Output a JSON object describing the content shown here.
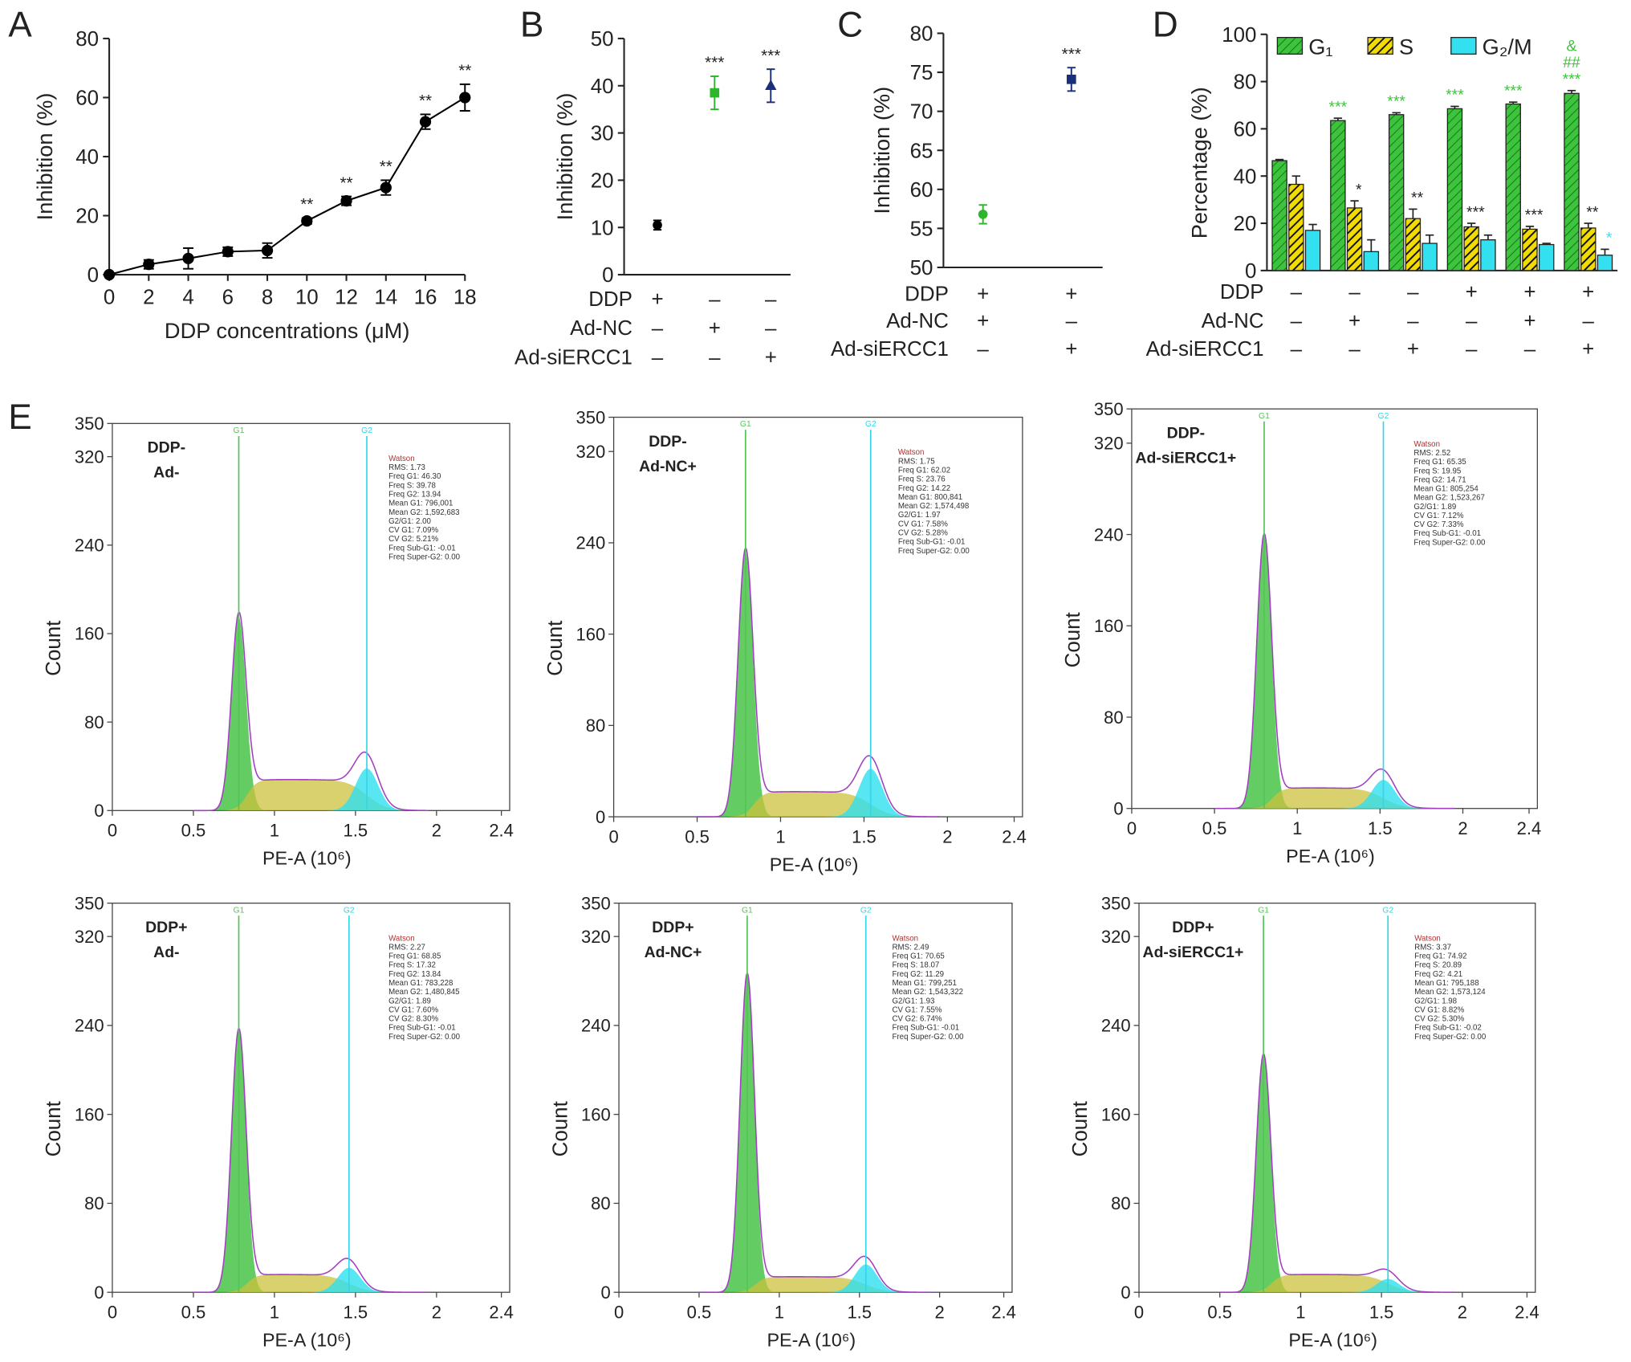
{
  "chart_data": [
    {
      "type": "line",
      "label": "A",
      "x": [
        0,
        2,
        4,
        6,
        8,
        10,
        12,
        14,
        16,
        18
      ],
      "values": [
        0,
        3.5,
        5.5,
        7.8,
        8.2,
        18.2,
        25,
        29.5,
        51.8,
        60
      ],
      "errors": [
        0,
        1.5,
        3.5,
        1.5,
        2.5,
        1,
        1.5,
        2.5,
        2.5,
        4.5
      ],
      "significance": [
        null,
        null,
        null,
        null,
        null,
        "**",
        "**",
        "**",
        "**",
        "**"
      ],
      "color": "#000000",
      "xlim": [
        0,
        18
      ],
      "xticks": [
        0,
        2,
        4,
        6,
        8,
        10,
        12,
        14,
        16,
        18
      ],
      "ylim": [
        0,
        80
      ],
      "yticks": [
        0,
        20,
        40,
        60,
        80
      ],
      "xlabel": "DDP concentrations (μM)",
      "ylabel": "Inhibition (%)"
    },
    {
      "type": "dot",
      "label": "B",
      "ylabel": "Inhibition (%)",
      "ylim": [
        0,
        50
      ],
      "yticks": [
        0,
        10,
        20,
        30,
        40,
        50
      ],
      "values": [
        10.5,
        38.5,
        40
      ],
      "errors": [
        1,
        3.5,
        3.5
      ],
      "colors": [
        "#000000",
        "#2db52d",
        "#1a2f7a"
      ],
      "markers": [
        "circle",
        "square",
        "triangle"
      ],
      "significance": [
        null,
        "***",
        "***"
      ],
      "significance_color": "#222222",
      "conditions": [
        {
          "name": "DDP",
          "signs": [
            "+",
            "–",
            "–"
          ]
        },
        {
          "name": "Ad-NC",
          "signs": [
            "–",
            "+",
            "–"
          ]
        },
        {
          "name": "Ad-siERCC1",
          "signs": [
            "–",
            "–",
            "+"
          ]
        }
      ]
    },
    {
      "type": "dot",
      "label": "C",
      "ylabel": "Inhibition (%)",
      "ylim": [
        50,
        80
      ],
      "yticks": [
        50,
        55,
        60,
        65,
        70,
        75,
        80
      ],
      "values": [
        56.8,
        74.1
      ],
      "errors": [
        1.2,
        1.5
      ],
      "colors": [
        "#2db52d",
        "#1a2f7a"
      ],
      "markers": [
        "circle",
        "square"
      ],
      "significance": [
        null,
        "***"
      ],
      "significance_color": "#222222",
      "conditions": [
        {
          "name": "DDP",
          "signs": [
            "+",
            "+"
          ]
        },
        {
          "name": "Ad-NC",
          "signs": [
            "+",
            "–"
          ]
        },
        {
          "name": "Ad-siERCC1",
          "signs": [
            "–",
            "+"
          ]
        }
      ]
    },
    {
      "type": "bar",
      "label": "D",
      "ylabel": "Percentage (%)",
      "ylim": [
        0,
        100
      ],
      "yticks": [
        0,
        20,
        40,
        60,
        80,
        100
      ],
      "series": [
        {
          "name": "G₁",
          "color": "#3cc43c",
          "significance_color": "#3cc43c",
          "values": [
            46.5,
            63.5,
            66,
            68.5,
            70.5,
            75
          ],
          "errors": [
            0.5,
            1,
            0.8,
            1,
            0.8,
            1.2
          ],
          "significance": [
            null,
            "***",
            "***",
            "***",
            "***",
            [
              "***",
              "##",
              "&"
            ]
          ]
        },
        {
          "name": "S",
          "color": "#f2dc00",
          "significance_color": "#222222",
          "values": [
            36.5,
            26.5,
            22,
            18.5,
            17.5,
            18
          ],
          "errors": [
            3.5,
            3,
            4,
            1.5,
            1.2,
            2
          ],
          "significance": [
            null,
            "*",
            "**",
            "***",
            "***",
            "**"
          ]
        },
        {
          "name": "G₂/M",
          "color": "#33e0f0",
          "significance_color": "#33e0f0",
          "values": [
            17,
            8,
            11.5,
            13,
            11,
            6.5
          ],
          "errors": [
            2.5,
            5,
            3.5,
            2,
            0.5,
            2.5
          ],
          "significance": [
            null,
            null,
            null,
            null,
            null,
            "*"
          ]
        }
      ],
      "conditions": [
        {
          "name": "DDP",
          "signs": [
            "–",
            "–",
            "–",
            "+",
            "+",
            "+"
          ]
        },
        {
          "name": "Ad-NC",
          "signs": [
            "–",
            "+",
            "–",
            "–",
            "+",
            "–"
          ]
        },
        {
          "name": "Ad-siERCC1",
          "signs": [
            "–",
            "–",
            "+",
            "–",
            "–",
            "+"
          ]
        }
      ]
    },
    {
      "type": "flow-histogram",
      "label": "E",
      "panels": [
        {
          "sample": [
            "DDP-",
            "Ad-"
          ],
          "xlabel": "PE-A (10⁶)",
          "ylabel": "Count",
          "xlim": [
            0,
            2.4
          ],
          "xticks": [
            0,
            0.5,
            1,
            1.5,
            2,
            2.4
          ],
          "ylim": [
            0,
            350
          ],
          "yticks": [
            0,
            80,
            160,
            240,
            320,
            350
          ],
          "gates": [
            {
              "label": "G1",
              "position": 0.78,
              "peak": 175
            },
            {
              "label": "G2",
              "position": 1.57,
              "peak": 38
            }
          ],
          "s_level": 28,
          "stats": [
            "Watson",
            "RMS: 1.73",
            "Freq G1: 46.30",
            "Freq S: 39.78",
            "Freq G2: 13.94",
            "Mean G1: 796,001",
            "Mean G2: 1,592,683",
            "G2/G1: 2.00",
            "CV G1: 7.09%",
            "CV G2: 5.21%",
            "Freq Sub-G1: -0.01",
            "Freq Super-G2: 0.00"
          ]
        },
        {
          "sample": [
            "DDP-",
            "Ad-NC+"
          ],
          "xlabel": "PE-A (10⁶)",
          "ylabel": "Count",
          "xlim": [
            0,
            2.4
          ],
          "xticks": [
            0,
            0.5,
            1,
            1.5,
            2,
            2.4
          ],
          "ylim": [
            0,
            350
          ],
          "yticks": [
            0,
            80,
            160,
            240,
            320,
            350
          ],
          "gates": [
            {
              "label": "G1",
              "position": 0.79,
              "peak": 232
            },
            {
              "label": "G2",
              "position": 1.54,
              "peak": 42
            }
          ],
          "s_level": 22,
          "stats": [
            "Watson",
            "RMS: 1.75",
            "Freq G1: 62.02",
            "Freq S: 23.76",
            "Freq G2: 14.22",
            "Mean G1: 800,841",
            "Mean G2: 1,574,498",
            "G2/G1: 1.97",
            "CV G1: 7.58%",
            "CV G2: 5.28%",
            "Freq Sub-G1: -0.01",
            "Freq Super-G2: 0.00"
          ]
        },
        {
          "sample": [
            "DDP-",
            "Ad-siERCC1+"
          ],
          "xlabel": "PE-A (10⁶)",
          "ylabel": "Count",
          "xlim": [
            0,
            2.4
          ],
          "xticks": [
            0,
            0.5,
            1,
            1.5,
            2,
            2.4
          ],
          "ylim": [
            0,
            350
          ],
          "yticks": [
            0,
            80,
            160,
            240,
            320,
            350
          ],
          "gates": [
            {
              "label": "G1",
              "position": 0.8,
              "peak": 238
            },
            {
              "label": "G2",
              "position": 1.52,
              "peak": 25
            }
          ],
          "s_level": 18,
          "stats": [
            "Watson",
            "RMS: 2.52",
            "Freq G1: 65.35",
            "Freq S: 19.95",
            "Freq G2: 14.71",
            "Mean G1: 805,254",
            "Mean G2: 1,523,267",
            "G2/G1: 1.89",
            "CV G1: 7.12%",
            "CV G2: 7.33%",
            "Freq Sub-G1: -0.01",
            "Freq Super-G2: 0.00"
          ]
        },
        {
          "sample": [
            "DDP+",
            "Ad-"
          ],
          "xlabel": "PE-A (10⁶)",
          "ylabel": "Count",
          "xlim": [
            0,
            2.4
          ],
          "xticks": [
            0,
            0.5,
            1,
            1.5,
            2,
            2.4
          ],
          "ylim": [
            0,
            350
          ],
          "yticks": [
            0,
            80,
            160,
            240,
            320,
            350
          ],
          "gates": [
            {
              "label": "G1",
              "position": 0.78,
              "peak": 235
            },
            {
              "label": "G2",
              "position": 1.46,
              "peak": 22
            }
          ],
          "s_level": 16,
          "stats": [
            "Watson",
            "RMS: 2.27",
            "Freq G1: 68.85",
            "Freq S: 17.32",
            "Freq G2: 13.84",
            "Mean G1: 783,228",
            "Mean G2: 1,480,845",
            "G2/G1: 1.89",
            "CV G1: 7.60%",
            "CV G2: 8.30%",
            "Freq Sub-G1: -0.01",
            "Freq Super-G2: 0.00"
          ]
        },
        {
          "sample": [
            "DDP+",
            "Ad-NC+"
          ],
          "xlabel": "PE-A (10⁶)",
          "ylabel": "Count",
          "xlim": [
            0,
            2.4
          ],
          "xticks": [
            0,
            0.5,
            1,
            1.5,
            2,
            2.4
          ],
          "ylim": [
            0,
            350
          ],
          "yticks": [
            0,
            80,
            160,
            240,
            320,
            350
          ],
          "gates": [
            {
              "label": "G1",
              "position": 0.8,
              "peak": 285
            },
            {
              "label": "G2",
              "position": 1.54,
              "peak": 25
            }
          ],
          "s_level": 14,
          "stats": [
            "Watson",
            "RMS: 2.49",
            "Freq G1: 70.65",
            "Freq S: 18.07",
            "Freq G2: 11.29",
            "Mean G1: 799,251",
            "Mean G2: 1,543,322",
            "G2/G1: 1.93",
            "CV G1: 7.55%",
            "CV G2: 6.74%",
            "Freq Sub-G1: -0.01",
            "Freq Super-G2: 0.00"
          ]
        },
        {
          "sample": [
            "DDP+",
            "Ad-siERCC1+"
          ],
          "xlabel": "PE-A (10⁶)",
          "ylabel": "Count",
          "xlim": [
            0,
            2.4
          ],
          "xticks": [
            0,
            0.5,
            1,
            1.5,
            2,
            2.4
          ],
          "ylim": [
            0,
            350
          ],
          "yticks": [
            0,
            80,
            160,
            240,
            320,
            350
          ],
          "gates": [
            {
              "label": "G1",
              "position": 0.77,
              "peak": 212
            },
            {
              "label": "G2",
              "position": 1.54,
              "peak": 12
            }
          ],
          "s_level": 16,
          "stats": [
            "Watson",
            "RMS: 3.37",
            "Freq G1: 74.92",
            "Freq S: 20.89",
            "Freq G2: 4.21",
            "Mean G1: 795,188",
            "Mean G2: 1,573,124",
            "G2/G1: 1.98",
            "CV G1: 8.82%",
            "CV G2: 5.30%",
            "Freq Sub-G1: -0.02",
            "Freq Super-G2: 0.00"
          ]
        }
      ]
    }
  ]
}
